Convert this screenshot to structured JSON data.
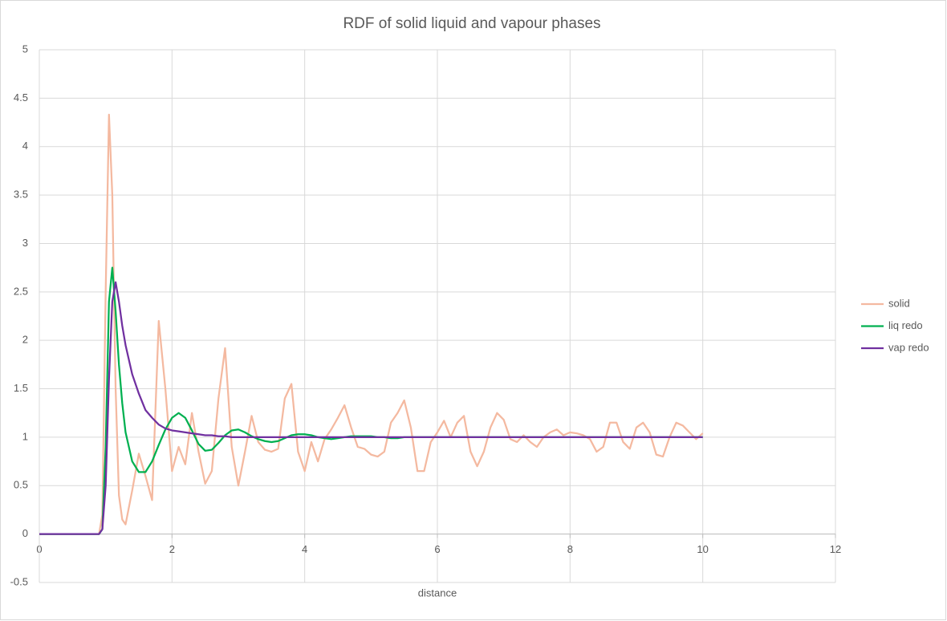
{
  "chart_data": {
    "type": "line",
    "title": "RDF of solid liquid and vapour phases",
    "x_label": "distance",
    "x": [
      0,
      0.5,
      0.9,
      0.95,
      1,
      1.05,
      1.1,
      1.15,
      1.2,
      1.25,
      1.3,
      1.4,
      1.5,
      1.6,
      1.7,
      1.8,
      1.9,
      2,
      2.1,
      2.2,
      2.3,
      2.4,
      2.5,
      2.6,
      2.7,
      2.8,
      2.9,
      3,
      3.1,
      3.2,
      3.3,
      3.4,
      3.5,
      3.6,
      3.7,
      3.8,
      3.9,
      4,
      4.1,
      4.2,
      4.3,
      4.4,
      4.5,
      4.6,
      4.7,
      4.8,
      4.9,
      5,
      5.1,
      5.2,
      5.3,
      5.4,
      5.5,
      5.6,
      5.7,
      5.8,
      5.9,
      6,
      6.1,
      6.2,
      6.3,
      6.4,
      6.5,
      6.6,
      6.7,
      6.8,
      6.9,
      7,
      7.1,
      7.2,
      7.3,
      7.4,
      7.5,
      7.6,
      7.7,
      7.8,
      7.9,
      8,
      8.1,
      8.2,
      8.3,
      8.4,
      8.5,
      8.6,
      8.7,
      8.8,
      8.9,
      9,
      9.1,
      9.2,
      9.3,
      9.4,
      9.5,
      9.6,
      9.7,
      9.8,
      9.9,
      10
    ],
    "series": [
      {
        "name": "solid",
        "color": "#f4b9a0",
        "values": [
          0,
          0,
          0,
          0.2,
          2.5,
          4.33,
          3.5,
          1.5,
          0.4,
          0.15,
          0.1,
          0.45,
          0.83,
          0.6,
          0.35,
          2.2,
          1.5,
          0.65,
          0.9,
          0.72,
          1.25,
          0.85,
          0.52,
          0.65,
          1.4,
          1.92,
          0.9,
          0.5,
          0.85,
          1.22,
          0.95,
          0.87,
          0.85,
          0.88,
          1.4,
          1.55,
          0.85,
          0.65,
          0.95,
          0.75,
          0.98,
          1.08,
          1.2,
          1.33,
          1.1,
          0.9,
          0.88,
          0.82,
          0.8,
          0.85,
          1.15,
          1.25,
          1.38,
          1.1,
          0.65,
          0.65,
          0.95,
          1.05,
          1.17,
          1.0,
          1.15,
          1.22,
          0.85,
          0.7,
          0.85,
          1.1,
          1.25,
          1.18,
          0.98,
          0.95,
          1.02,
          0.95,
          0.9,
          1.0,
          1.05,
          1.08,
          1.02,
          1.05,
          1.04,
          1.02,
          0.98,
          0.85,
          0.9,
          1.15,
          1.15,
          0.95,
          0.88,
          1.1,
          1.15,
          1.05,
          0.82,
          0.8,
          1.0,
          1.15,
          1.12,
          1.05,
          0.98,
          1.04
        ]
      },
      {
        "name": "liq redo",
        "color": "#00b050",
        "values": [
          0,
          0,
          0,
          0.05,
          0.9,
          2.4,
          2.75,
          2.3,
          1.75,
          1.35,
          1.05,
          0.75,
          0.64,
          0.64,
          0.75,
          0.92,
          1.08,
          1.2,
          1.25,
          1.2,
          1.07,
          0.93,
          0.86,
          0.87,
          0.94,
          1.02,
          1.07,
          1.08,
          1.05,
          1.01,
          0.98,
          0.96,
          0.95,
          0.96,
          0.99,
          1.02,
          1.03,
          1.03,
          1.02,
          1.0,
          0.99,
          0.98,
          0.99,
          1.0,
          1.01,
          1.01,
          1.01,
          1.01,
          1.0,
          1.0,
          0.99,
          0.99,
          1,
          1,
          1,
          1,
          1,
          1,
          1,
          1,
          1,
          1,
          1,
          1,
          1,
          1,
          1,
          1,
          1,
          1,
          1,
          1,
          1,
          1,
          1,
          1,
          1,
          1,
          1,
          1,
          1,
          1,
          1,
          1,
          1,
          1,
          1,
          1,
          1,
          1,
          1,
          1,
          1,
          1,
          1,
          1,
          1,
          1
        ]
      },
      {
        "name": "vap redo",
        "color": "#7030a0",
        "values": [
          0,
          0,
          0,
          0.05,
          0.5,
          1.6,
          2.4,
          2.6,
          2.4,
          2.15,
          1.95,
          1.65,
          1.45,
          1.28,
          1.2,
          1.13,
          1.09,
          1.07,
          1.06,
          1.05,
          1.04,
          1.03,
          1.02,
          1.02,
          1.01,
          1.01,
          1,
          1,
          1,
          1,
          1,
          1,
          1,
          1,
          1,
          1,
          1,
          1,
          1,
          1,
          1,
          1,
          1,
          1,
          1,
          1,
          1,
          1,
          1,
          1,
          1,
          1,
          1,
          1,
          1,
          1,
          1,
          1,
          1,
          1,
          1,
          1,
          1,
          1,
          1,
          1,
          1,
          1,
          1,
          1,
          1,
          1,
          1,
          1,
          1,
          1,
          1,
          1,
          1,
          1,
          1,
          1,
          1,
          1,
          1,
          1,
          1,
          1,
          1,
          1,
          1,
          1,
          1,
          1,
          1,
          1,
          1,
          1
        ]
      }
    ],
    "xlim": [
      0,
      12
    ],
    "xticks": [
      0,
      2,
      4,
      6,
      8,
      10,
      12
    ],
    "ylim": [
      -0.5,
      5
    ],
    "yticks": [
      -0.5,
      0,
      0.5,
      1,
      1.5,
      2,
      2.5,
      3,
      3.5,
      4,
      4.5,
      5
    ],
    "grid": true,
    "legend": "right"
  }
}
